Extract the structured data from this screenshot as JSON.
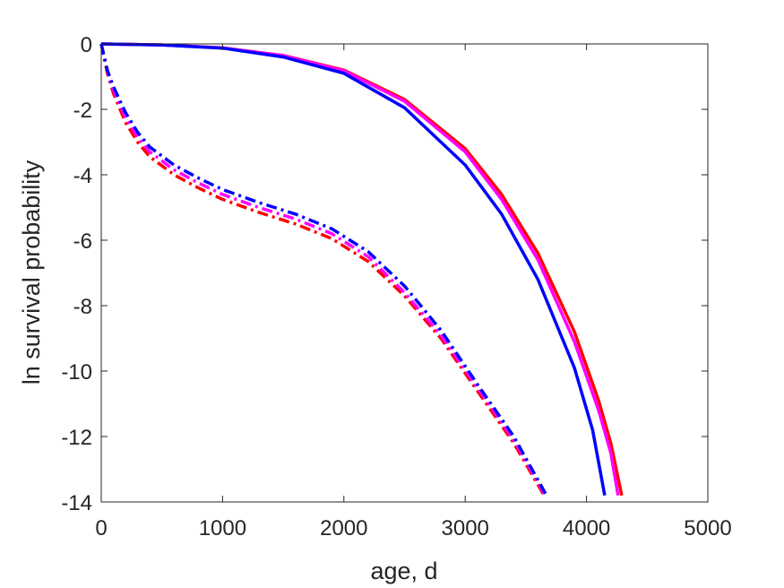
{
  "chart_data": {
    "type": "line",
    "title": "",
    "xlabel": "age, d",
    "ylabel": "ln survival probability",
    "xlim": [
      0,
      5000
    ],
    "ylim": [
      -14,
      0
    ],
    "x_ticks": [
      0,
      1000,
      2000,
      3000,
      4000,
      5000
    ],
    "x_tick_labels": [
      "0",
      "1000",
      "2000",
      "3000",
      "4000",
      "5000"
    ],
    "y_ticks": [
      0,
      -2,
      -4,
      -6,
      -8,
      -10,
      -12,
      -14
    ],
    "y_tick_labels": [
      "0",
      "-2",
      "-4",
      "-6",
      "-8",
      "-10",
      "-12",
      "-14"
    ],
    "grid": false,
    "legend": "none",
    "series": [
      {
        "color": "#ff0000",
        "style": "solid",
        "points": [
          [
            0,
            0
          ],
          [
            500,
            -0.03
          ],
          [
            1000,
            -0.12
          ],
          [
            1500,
            -0.35
          ],
          [
            2000,
            -0.8
          ],
          [
            2500,
            -1.7
          ],
          [
            3000,
            -3.2
          ],
          [
            3300,
            -4.6
          ],
          [
            3600,
            -6.4
          ],
          [
            3900,
            -8.8
          ],
          [
            4100,
            -10.9
          ],
          [
            4200,
            -12.2
          ],
          [
            4290,
            -13.8
          ]
        ]
      },
      {
        "color": "#ff00ff",
        "style": "solid",
        "points": [
          [
            0,
            0
          ],
          [
            500,
            -0.03
          ],
          [
            1000,
            -0.12
          ],
          [
            1500,
            -0.36
          ],
          [
            2000,
            -0.82
          ],
          [
            2500,
            -1.75
          ],
          [
            3000,
            -3.3
          ],
          [
            3300,
            -4.75
          ],
          [
            3600,
            -6.6
          ],
          [
            3900,
            -9.1
          ],
          [
            4100,
            -11.2
          ],
          [
            4200,
            -12.5
          ],
          [
            4260,
            -13.8
          ]
        ]
      },
      {
        "color": "#0000ff",
        "style": "solid",
        "points": [
          [
            0,
            0
          ],
          [
            500,
            -0.03
          ],
          [
            1000,
            -0.13
          ],
          [
            1500,
            -0.4
          ],
          [
            2000,
            -0.9
          ],
          [
            2500,
            -1.95
          ],
          [
            3000,
            -3.7
          ],
          [
            3300,
            -5.2
          ],
          [
            3600,
            -7.2
          ],
          [
            3900,
            -9.9
          ],
          [
            4050,
            -11.8
          ],
          [
            4150,
            -13.8
          ]
        ]
      },
      {
        "color": "#ff0000",
        "style": "dashdot",
        "points": [
          [
            0,
            0
          ],
          [
            50,
            -0.9
          ],
          [
            100,
            -1.5
          ],
          [
            200,
            -2.4
          ],
          [
            300,
            -3.0
          ],
          [
            400,
            -3.45
          ],
          [
            600,
            -4.0
          ],
          [
            800,
            -4.4
          ],
          [
            1000,
            -4.75
          ],
          [
            1300,
            -5.15
          ],
          [
            1600,
            -5.5
          ],
          [
            1900,
            -5.95
          ],
          [
            2200,
            -6.65
          ],
          [
            2500,
            -7.7
          ],
          [
            2800,
            -9.0
          ],
          [
            3100,
            -10.6
          ],
          [
            3400,
            -12.2
          ],
          [
            3650,
            -13.8
          ]
        ]
      },
      {
        "color": "#ff00ff",
        "style": "dashdot",
        "points": [
          [
            0,
            0
          ],
          [
            50,
            -0.85
          ],
          [
            100,
            -1.4
          ],
          [
            200,
            -2.25
          ],
          [
            300,
            -2.85
          ],
          [
            400,
            -3.3
          ],
          [
            600,
            -3.85
          ],
          [
            800,
            -4.25
          ],
          [
            1000,
            -4.6
          ],
          [
            1300,
            -5.0
          ],
          [
            1600,
            -5.35
          ],
          [
            1900,
            -5.8
          ],
          [
            2200,
            -6.5
          ],
          [
            2500,
            -7.6
          ],
          [
            2800,
            -8.9
          ],
          [
            3100,
            -10.5
          ],
          [
            3400,
            -12.1
          ],
          [
            3660,
            -13.8
          ]
        ]
      },
      {
        "color": "#0000ff",
        "style": "dashdot",
        "points": [
          [
            0,
            0
          ],
          [
            50,
            -0.8
          ],
          [
            100,
            -1.3
          ],
          [
            200,
            -2.1
          ],
          [
            300,
            -2.7
          ],
          [
            400,
            -3.15
          ],
          [
            600,
            -3.7
          ],
          [
            800,
            -4.1
          ],
          [
            1000,
            -4.45
          ],
          [
            1300,
            -4.85
          ],
          [
            1600,
            -5.2
          ],
          [
            1900,
            -5.65
          ],
          [
            2200,
            -6.35
          ],
          [
            2500,
            -7.4
          ],
          [
            2800,
            -8.75
          ],
          [
            3100,
            -10.4
          ],
          [
            3400,
            -12.0
          ],
          [
            3670,
            -13.8
          ]
        ]
      }
    ]
  }
}
